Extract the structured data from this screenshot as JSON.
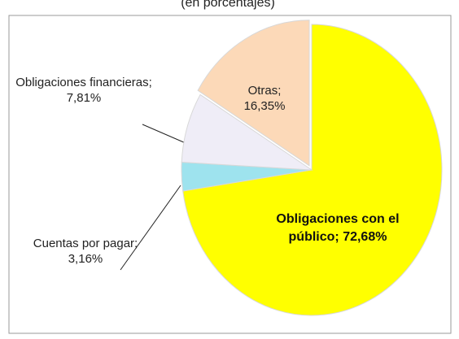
{
  "chart_data": {
    "type": "pie",
    "subtitle": "(en porcentajes)",
    "categories": [
      "Obligaciones con el público",
      "Cuentas por pagar",
      "Obligaciones financieras",
      "Otras"
    ],
    "values": [
      72.68,
      3.16,
      7.81,
      16.35
    ],
    "value_labels": [
      "Obligaciones con el público; 72,68%",
      "Cuentas por pagar; 3,16%",
      "Obligaciones financieras; 7,81%",
      "Otras; 16,35%"
    ],
    "colors": [
      "#ffff00",
      "#9ee3ee",
      "#efedf7",
      "#fcd9b8"
    ]
  }
}
